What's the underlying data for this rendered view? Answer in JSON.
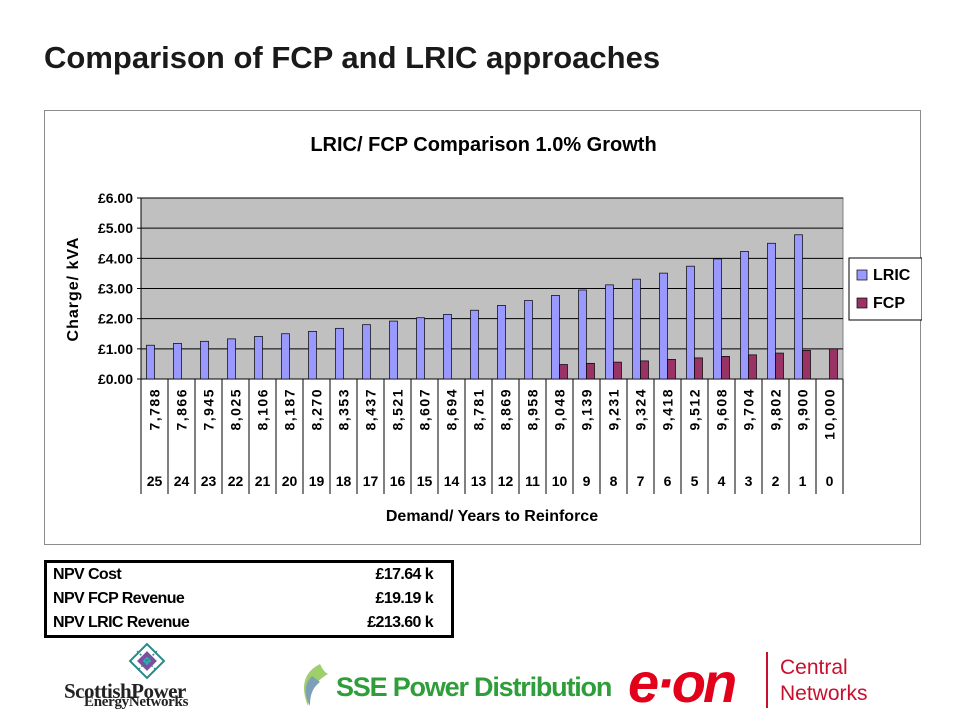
{
  "page": {
    "title": "Comparison of FCP and LRIC approaches"
  },
  "chart_data": {
    "type": "bar",
    "title": "LRIC/ FCP Comparison 1.0% Growth",
    "xlabel": "Demand/ Years to Reinforce",
    "ylabel": "Charge/ kVA",
    "ylim": [
      0,
      6
    ],
    "yticks": [
      "£0.00",
      "£1.00",
      "£2.00",
      "£3.00",
      "£4.00",
      "£5.00",
      "£6.00"
    ],
    "categories": [
      "7,788",
      "7,866",
      "7,945",
      "8,025",
      "8,106",
      "8,187",
      "8,270",
      "8,353",
      "8,437",
      "8,521",
      "8,607",
      "8,694",
      "8,781",
      "8,869",
      "8,958",
      "9,048",
      "9,139",
      "9,231",
      "9,324",
      "9,418",
      "9,512",
      "9,608",
      "9,704",
      "9,802",
      "9,900",
      "10,000"
    ],
    "years_to_reinforce": [
      "25",
      "24",
      "23",
      "22",
      "21",
      "20",
      "19",
      "18",
      "17",
      "16",
      "15",
      "14",
      "13",
      "12",
      "11",
      "10",
      "9",
      "8",
      "7",
      "6",
      "5",
      "4",
      "3",
      "2",
      "1",
      "0"
    ],
    "series": [
      {
        "name": "LRIC",
        "color": "#9999ff",
        "values": [
          1.12,
          1.18,
          1.25,
          1.33,
          1.41,
          1.5,
          1.58,
          1.68,
          1.8,
          1.92,
          2.03,
          2.14,
          2.28,
          2.44,
          2.6,
          2.77,
          2.95,
          3.12,
          3.31,
          3.51,
          3.74,
          3.98,
          4.23,
          4.5,
          4.78,
          0
        ]
      },
      {
        "name": "FCP",
        "color": "#993366",
        "values": [
          0,
          0,
          0,
          0,
          0,
          0,
          0,
          0,
          0,
          0,
          0,
          0,
          0,
          0,
          0,
          0.48,
          0.52,
          0.56,
          0.6,
          0.65,
          0.7,
          0.75,
          0.8,
          0.86,
          0.95,
          1.0
        ]
      }
    ],
    "grid": true,
    "legend_position": "right",
    "plot_background": "#c0c0c0"
  },
  "npv_table": {
    "rows": [
      {
        "label": "NPV Cost",
        "value": "£17.64 k"
      },
      {
        "label": "NPV FCP Revenue",
        "value": "£19.19 k"
      },
      {
        "label": "NPV LRIC Revenue",
        "value": "£213.60 k"
      }
    ]
  },
  "logos": {
    "scottish_power_line1": "ScottishPower",
    "scottish_power_line2": "EnergyNetworks",
    "sse": "SSE Power Distribution",
    "eon": "e·on",
    "eon_sub1": "Central",
    "eon_sub2": "Networks"
  }
}
